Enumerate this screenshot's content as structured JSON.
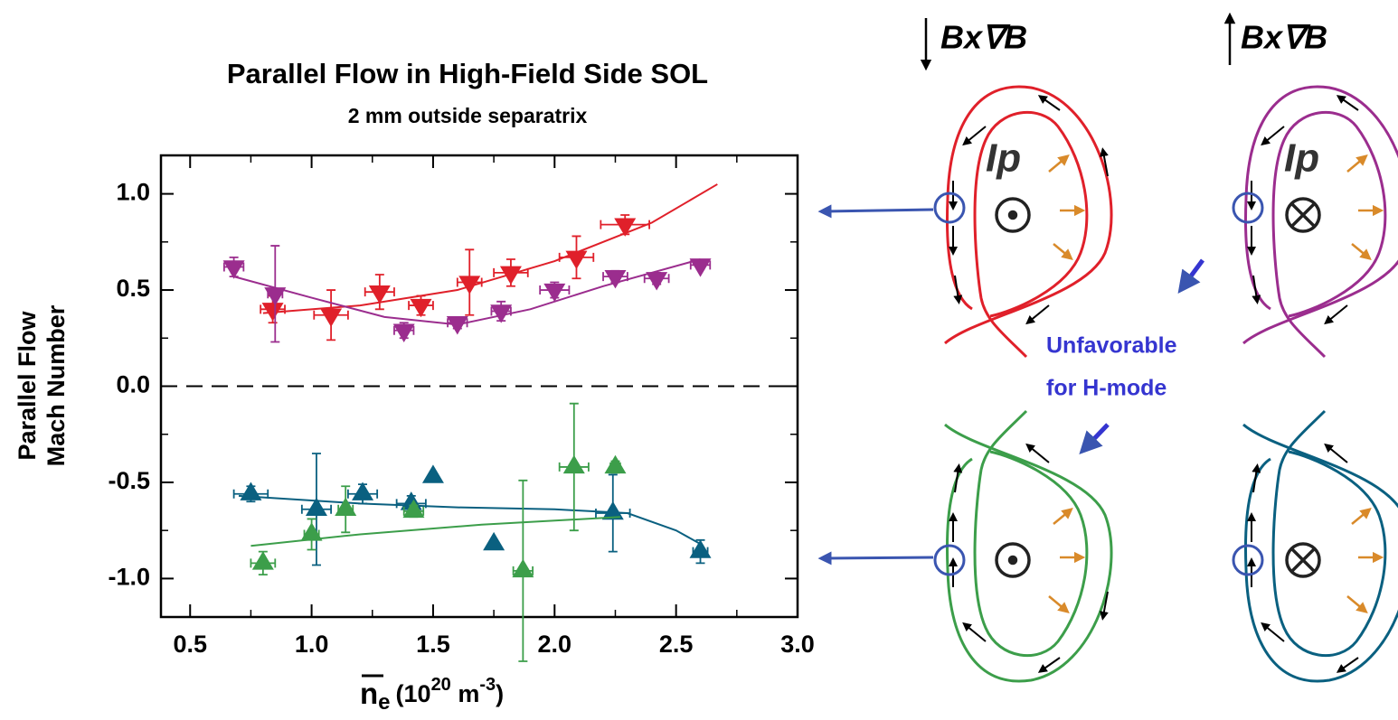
{
  "chart_data": {
    "type": "scatter",
    "title": "Parallel Flow in High-Field Side SOL",
    "subtitle": "2 mm outside separatrix",
    "ylabel": [
      "Parallel Flow",
      "Mach Number"
    ],
    "xlabel_parts": {
      "base": "n",
      "sub": "e",
      "open": "(10",
      "exp": "20",
      "unit": " m",
      "unit_exp": "-3",
      "close": ")"
    },
    "xlim": [
      0.38,
      3.0
    ],
    "ylim": [
      -1.2,
      1.2
    ],
    "xticks": [
      0.5,
      {
        "value": 1,
        "label": "1.0"
      },
      1.5,
      {
        "value": 2,
        "label": "2.0"
      },
      2.5,
      {
        "value": 3,
        "label": "3.0"
      }
    ],
    "yticks": [
      {
        "value": -1,
        "label": "-1.0"
      },
      -0.5,
      {
        "value": 0,
        "label": "0.0"
      },
      0.5,
      {
        "value": 1,
        "label": "1.0"
      }
    ],
    "hline": 0,
    "series": [
      {
        "color": "#e0202a",
        "marker": "down",
        "x": [
          0.84,
          1.08,
          1.28,
          1.45,
          1.65,
          1.82,
          2.09,
          2.29
        ],
        "values": [
          0.4,
          0.37,
          0.49,
          0.42,
          0.54,
          0.59,
          0.67,
          0.84
        ],
        "yerr": [
          0.07,
          0.13,
          0.09,
          0.05,
          0.17,
          0.07,
          0.11,
          0.05
        ],
        "xerr": [
          0.05,
          0.07,
          0.06,
          0.05,
          0.05,
          0.07,
          0.07,
          0.1
        ],
        "fit_x": [
          0.8,
          1.2,
          1.6,
          2.0,
          2.4,
          2.67
        ],
        "fit_y": [
          0.38,
          0.42,
          0.5,
          0.65,
          0.85,
          1.05
        ]
      },
      {
        "color": "#9b2d8e",
        "marker": "down",
        "x": [
          0.68,
          0.85,
          1.38,
          1.6,
          1.78,
          2.0,
          2.25,
          2.42,
          2.6
        ],
        "values": [
          0.62,
          0.48,
          0.29,
          0.33,
          0.39,
          0.5,
          0.57,
          0.56,
          0.63
        ],
        "yerr": [
          0.05,
          0.25,
          0.04,
          0.03,
          0.05,
          0.04,
          0.03,
          0.03,
          0.02
        ],
        "xerr": [
          0.04,
          0.03,
          0.04,
          0.04,
          0.04,
          0.06,
          0.05,
          0.05,
          0.04
        ],
        "fit_x": [
          0.68,
          1.0,
          1.3,
          1.6,
          1.9,
          2.2,
          2.6
        ],
        "fit_y": [
          0.57,
          0.46,
          0.36,
          0.32,
          0.4,
          0.52,
          0.66
        ]
      },
      {
        "color": "#0a6080",
        "marker": "up",
        "x": [
          0.75,
          1.02,
          1.21,
          1.41,
          1.5,
          1.75,
          2.24,
          2.6
        ],
        "values": [
          -0.56,
          -0.64,
          -0.56,
          -0.61,
          -0.47,
          -0.82,
          -0.66,
          -0.86
        ],
        "yerr": [
          0.04,
          0.29,
          0.05,
          0.04,
          null,
          null,
          0.2,
          0.06
        ],
        "xerr": [
          0.07,
          0.06,
          0.06,
          0.06,
          null,
          null,
          0.07,
          0.03
        ],
        "fit_x": [
          0.7,
          1.2,
          1.6,
          2.0,
          2.3,
          2.5,
          2.6
        ],
        "fit_y": [
          -0.57,
          -0.61,
          -0.63,
          -0.64,
          -0.66,
          -0.75,
          -0.82
        ]
      },
      {
        "color": "#3c9e4a",
        "marker": "up",
        "x": [
          0.8,
          1.0,
          1.14,
          1.42,
          1.87,
          2.08,
          2.25
        ],
        "values": [
          -0.92,
          -0.77,
          -0.64,
          -0.65,
          -0.96,
          -0.42,
          -0.42
        ],
        "yerr": [
          0.06,
          0.08,
          0.12,
          0.03,
          0.47,
          0.33,
          0.03
        ],
        "xerr": [
          0.05,
          0.03,
          0.03,
          0.04,
          0.04,
          0.06,
          0.02
        ],
        "fit_x": [
          0.75,
          1.2,
          1.7,
          2.27
        ],
        "fit_y": [
          -0.83,
          -0.77,
          -0.72,
          -0.68
        ]
      }
    ]
  },
  "diagram": {
    "drift_label": "Bx∇B",
    "current_label": "Ip",
    "note": [
      "Unfavorable",
      "for H-mode"
    ]
  }
}
